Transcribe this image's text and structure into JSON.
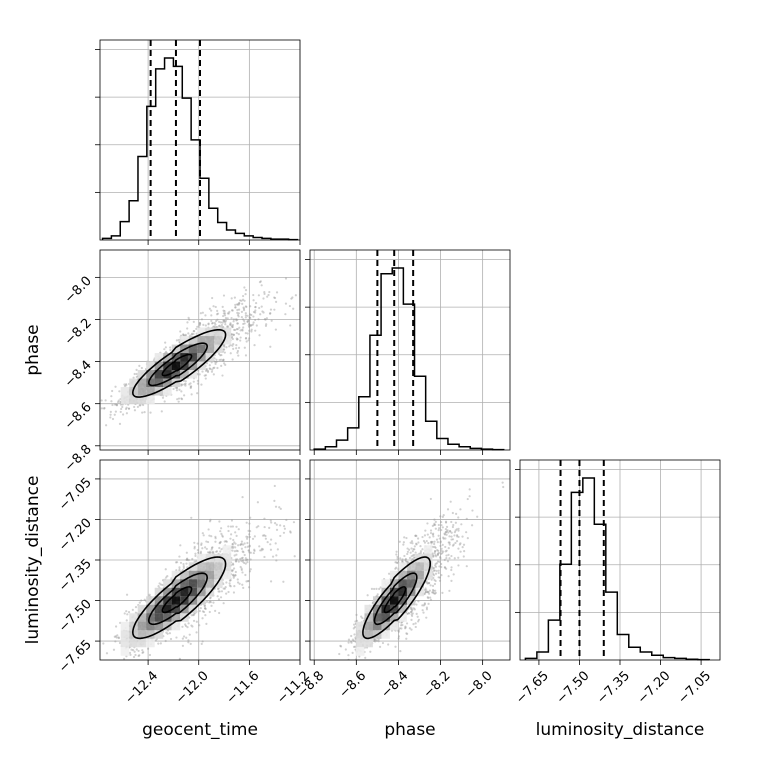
{
  "chart_data": {
    "type": "corner",
    "parameters": [
      "geocent_time",
      "phase",
      "luminosity_distance"
    ],
    "axis_labels": {
      "geocent_time": "geocent_time",
      "phase": "phase",
      "luminosity_distance": "luminosity_distance"
    },
    "ranges": {
      "geocent_time": [
        -12.78,
        -11.2
      ],
      "phase": [
        -8.82,
        -7.87
      ],
      "luminosity_distance": [
        -7.72,
        -6.98
      ]
    },
    "ticks": {
      "geocent_time": [
        -12.4,
        -12.0,
        -11.6,
        -11.2
      ],
      "phase": [
        -8.8,
        -8.6,
        -8.4,
        -8.2,
        -8.0
      ],
      "luminosity_distance": [
        -7.65,
        -7.5,
        -7.35,
        -7.2,
        -7.05
      ]
    },
    "tick_labels": {
      "geocent_time": [
        "−12.4",
        "−12.0",
        "−11.6",
        "−11.2"
      ],
      "phase": [
        "−8.8",
        "−8.6",
        "−8.4",
        "−8.2",
        "−8.0"
      ],
      "luminosity_distance": [
        "−7.65",
        "−7.50",
        "−7.35",
        "−7.20",
        "−7.05"
      ]
    },
    "quantiles": {
      "geocent_time": [
        -12.38,
        -12.18,
        -11.99
      ],
      "phase": [
        -8.5,
        -8.42,
        -8.33
      ],
      "luminosity_distance": [
        -7.57,
        -7.5,
        -7.41
      ]
    },
    "histograms": {
      "geocent_time": {
        "edges_range": [
          -12.76,
          -11.22
        ],
        "counts": [
          2,
          5,
          22,
          47,
          100,
          160,
          205,
          218,
          208,
          170,
          120,
          74,
          38,
          21,
          12,
          8,
          5,
          3,
          2,
          1,
          1,
          0.5
        ]
      },
      "phase": {
        "edges_range": [
          -8.8,
          -7.9
        ],
        "counts": [
          1,
          4,
          12,
          27,
          65,
          140,
          215,
          222,
          178,
          90,
          35,
          14,
          7,
          4,
          2,
          1,
          0.5
        ]
      },
      "luminosity_distance": {
        "edges_range": [
          -7.7,
          -7.02
        ],
        "counts": [
          2,
          10,
          50,
          120,
          210,
          228,
          170,
          85,
          32,
          16,
          10,
          6,
          3,
          2,
          1,
          0.5
        ]
      }
    },
    "correlations": {
      "phase_vs_geocent_time": 0.86,
      "luminosity_distance_vs_geocent_time": 0.84,
      "luminosity_distance_vs_phase": 0.85
    },
    "grid": true
  }
}
